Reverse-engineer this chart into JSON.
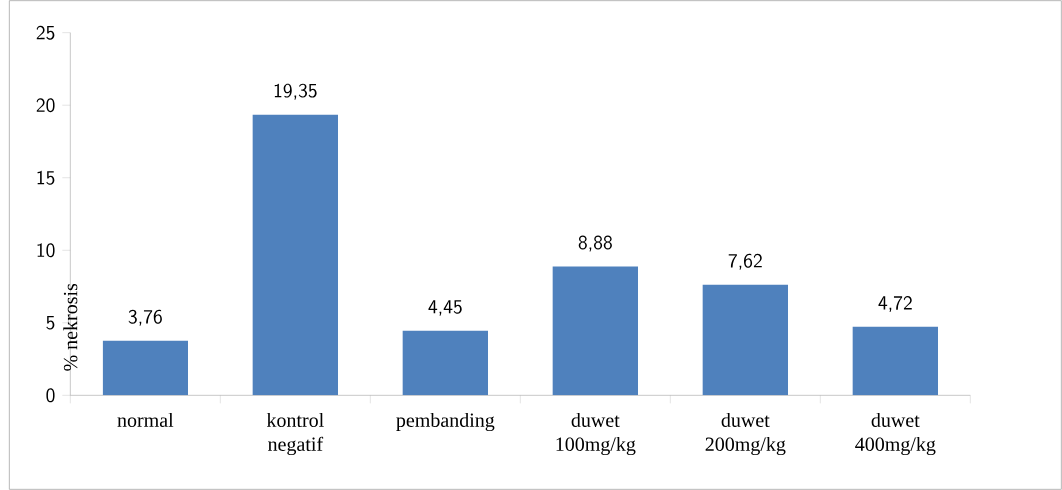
{
  "chart_data": {
    "type": "bar",
    "ylabel": "% nekrosis",
    "categories": [
      "normal",
      "kontrol negatif",
      "pembanding",
      "duwet 100mg/kg",
      "duwet 200mg/kg",
      "duwet 400mg/kg"
    ],
    "values": [
      3.76,
      19.35,
      4.45,
      8.88,
      7.62,
      4.72
    ],
    "value_labels": [
      "3,76",
      "19,35",
      "4,45",
      "8,88",
      "7,62",
      "4,72"
    ],
    "color": "#4f81bd",
    "ylim": [
      0,
      25
    ],
    "yticks": [
      0,
      5,
      10,
      15,
      20,
      25
    ]
  }
}
